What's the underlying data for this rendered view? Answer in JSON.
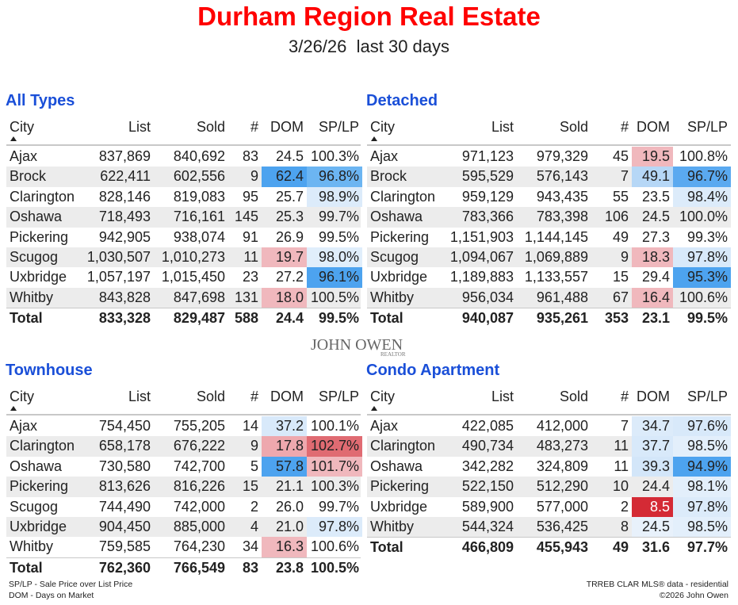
{
  "header": {
    "title": "Durham Region Real Estate",
    "subtitle": "3/26/26  last 30 days"
  },
  "watermark": {
    "name": "JOHN OWEN",
    "tag": "REALTOR"
  },
  "tables": [
    {
      "title": "All Types",
      "columns": [
        "City",
        "List",
        "Sold",
        "#",
        "DOM",
        "SP/LP"
      ],
      "rows": [
        {
          "cells": [
            "Ajax",
            "837,869",
            "840,692",
            "83",
            "24.5",
            "100.3%"
          ],
          "highlights": {}
        },
        {
          "cells": [
            "Brock",
            "622,411",
            "602,556",
            "9",
            "62.4",
            "96.8%"
          ],
          "highlights": {
            "4": "#4da3ef",
            "5": "#6cb5f2"
          }
        },
        {
          "cells": [
            "Clarington",
            "828,146",
            "819,083",
            "95",
            "25.7",
            "98.9%"
          ],
          "highlights": {
            "5": "#dcebfa"
          }
        },
        {
          "cells": [
            "Oshawa",
            "718,493",
            "716,161",
            "145",
            "25.3",
            "99.7%"
          ],
          "highlights": {}
        },
        {
          "cells": [
            "Pickering",
            "942,905",
            "938,074",
            "91",
            "26.9",
            "99.5%"
          ],
          "highlights": {}
        },
        {
          "cells": [
            "Scugog",
            "1,030,507",
            "1,010,273",
            "11",
            "19.7",
            "98.0%"
          ],
          "highlights": {
            "4": "#f0b8bd",
            "5": "#e0eefb"
          }
        },
        {
          "cells": [
            "Uxbridge",
            "1,057,197",
            "1,015,450",
            "23",
            "27.2",
            "96.1%"
          ],
          "highlights": {
            "5": "#4da3ef"
          }
        },
        {
          "cells": [
            "Whitby",
            "843,828",
            "847,698",
            "131",
            "18.0",
            "100.5%"
          ],
          "highlights": {
            "4": "#f0b8bd"
          }
        }
      ],
      "total": [
        "Total",
        "833,328",
        "829,487",
        "588",
        "24.4",
        "99.5%"
      ]
    },
    {
      "title": "Detached",
      "columns": [
        "City",
        "List",
        "Sold",
        "#",
        "DOM",
        "SP/LP"
      ],
      "rows": [
        {
          "cells": [
            "Ajax",
            "971,123",
            "979,329",
            "45",
            "19.5",
            "100.8%"
          ],
          "highlights": {
            "4": "#f0b8bd"
          }
        },
        {
          "cells": [
            "Brock",
            "595,529",
            "576,143",
            "7",
            "49.1",
            "96.7%"
          ],
          "highlights": {
            "4": "#b6d7f6",
            "5": "#5aa9f0"
          }
        },
        {
          "cells": [
            "Clarington",
            "959,129",
            "943,435",
            "55",
            "23.5",
            "98.4%"
          ],
          "highlights": {
            "5": "#dcebfa"
          }
        },
        {
          "cells": [
            "Oshawa",
            "783,366",
            "783,398",
            "106",
            "24.5",
            "100.0%"
          ],
          "highlights": {}
        },
        {
          "cells": [
            "Pickering",
            "1,151,903",
            "1,144,145",
            "49",
            "27.3",
            "99.3%"
          ],
          "highlights": {}
        },
        {
          "cells": [
            "Scugog",
            "1,094,067",
            "1,069,889",
            "9",
            "18.3",
            "97.8%"
          ],
          "highlights": {
            "4": "#f0b8bd",
            "5": "#d8e9fa"
          }
        },
        {
          "cells": [
            "Uxbridge",
            "1,189,883",
            "1,133,557",
            "15",
            "29.4",
            "95.3%"
          ],
          "highlights": {
            "5": "#4da3ef"
          }
        },
        {
          "cells": [
            "Whitby",
            "956,034",
            "961,488",
            "67",
            "16.4",
            "100.6%"
          ],
          "highlights": {
            "4": "#f0b8bd"
          }
        }
      ],
      "total": [
        "Total",
        "940,087",
        "935,261",
        "353",
        "23.1",
        "99.5%"
      ]
    },
    {
      "title": "Townhouse",
      "columns": [
        "City",
        "List",
        "Sold",
        "#",
        "DOM",
        "SP/LP"
      ],
      "rows": [
        {
          "cells": [
            "Ajax",
            "754,450",
            "755,205",
            "14",
            "37.2",
            "100.1%"
          ],
          "highlights": {
            "4": "#d8e9fa"
          }
        },
        {
          "cells": [
            "Clarington",
            "658,178",
            "676,222",
            "9",
            "17.8",
            "102.7%"
          ],
          "highlights": {
            "4": "#eea8ae",
            "5": "#e06b72"
          }
        },
        {
          "cells": [
            "Oshawa",
            "730,580",
            "742,700",
            "5",
            "57.8",
            "101.7%"
          ],
          "highlights": {
            "4": "#4da3ef",
            "5": "#f0b8bd"
          }
        },
        {
          "cells": [
            "Pickering",
            "813,626",
            "816,226",
            "15",
            "21.1",
            "100.3%"
          ],
          "highlights": {}
        },
        {
          "cells": [
            "Scugog",
            "744,490",
            "742,000",
            "2",
            "26.0",
            "99.7%"
          ],
          "highlights": {}
        },
        {
          "cells": [
            "Uxbridge",
            "904,450",
            "885,000",
            "4",
            "21.0",
            "97.8%"
          ],
          "highlights": {
            "5": "#dcebfa"
          }
        },
        {
          "cells": [
            "Whitby",
            "759,585",
            "764,230",
            "34",
            "16.3",
            "100.6%"
          ],
          "highlights": {
            "4": "#f0b8bd"
          }
        }
      ],
      "total": [
        "Total",
        "762,360",
        "766,549",
        "83",
        "23.8",
        "100.5%"
      ]
    },
    {
      "title": "Condo Apartment",
      "columns": [
        "City",
        "List",
        "Sold",
        "#",
        "DOM",
        "SP/LP"
      ],
      "rows": [
        {
          "cells": [
            "Ajax",
            "422,085",
            "412,000",
            "7",
            "34.7",
            "97.6%"
          ],
          "highlights": {
            "4": "#dcebfa",
            "5": "#d8e9fa"
          }
        },
        {
          "cells": [
            "Clarington",
            "490,734",
            "483,273",
            "11",
            "37.7",
            "98.5%"
          ],
          "highlights": {
            "4": "#d8e9fa",
            "5": "#e3effb"
          }
        },
        {
          "cells": [
            "Oshawa",
            "342,282",
            "324,809",
            "11",
            "39.3",
            "94.9%"
          ],
          "highlights": {
            "4": "#d3e6f9",
            "5": "#4da3ef"
          }
        },
        {
          "cells": [
            "Pickering",
            "522,150",
            "512,290",
            "10",
            "24.4",
            "98.1%"
          ],
          "highlights": {
            "5": "#e3effb"
          }
        },
        {
          "cells": [
            "Uxbridge",
            "589,900",
            "577,000",
            "2",
            "8.5",
            "97.8%"
          ],
          "highlights": {
            "4": "#d42a35",
            "5": "#dcebfa"
          }
        },
        {
          "cells": [
            "Whitby",
            "544,324",
            "536,425",
            "8",
            "24.5",
            "98.5%"
          ],
          "highlights": {
            "4": "#e8f1fb",
            "5": "#e3effb"
          }
        }
      ],
      "total": [
        "Total",
        "466,809",
        "455,943",
        "49",
        "31.6",
        "97.7%"
      ]
    }
  ],
  "footer": {
    "left": [
      "SP/LP - Sale Price over List Price",
      "DOM - Days on Market"
    ],
    "right": [
      "TRREB CLAR MLS® data - residential",
      "©2026 John Owen"
    ]
  }
}
